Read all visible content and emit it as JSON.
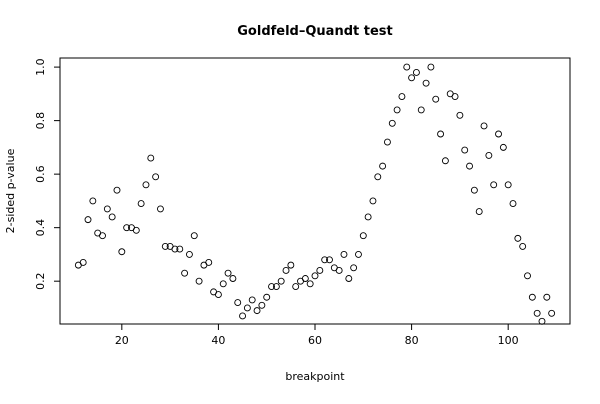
{
  "chart_data": {
    "type": "scatter",
    "title": "Goldfeld–Quandt test",
    "x_label": "breakpoint",
    "y_label": "2-sided p-value",
    "x": [
      11,
      12,
      13,
      14,
      15,
      16,
      17,
      18,
      19,
      20,
      21,
      22,
      23,
      24,
      25,
      26,
      27,
      28,
      29,
      30,
      31,
      32,
      33,
      34,
      35,
      36,
      37,
      38,
      39,
      40,
      41,
      42,
      43,
      44,
      45,
      46,
      47,
      48,
      49,
      50,
      51,
      52,
      53,
      54,
      55,
      56,
      57,
      58,
      59,
      60,
      61,
      62,
      63,
      64,
      65,
      66,
      67,
      68,
      69,
      70,
      71,
      72,
      73,
      74,
      75,
      76,
      77,
      78,
      79,
      80,
      81,
      82,
      83,
      84,
      85,
      86,
      87,
      88,
      89,
      90,
      91,
      92,
      93,
      94,
      95,
      96,
      97,
      98,
      99,
      100,
      101,
      102,
      103,
      104,
      105,
      106,
      107,
      108,
      109
    ],
    "values": [
      0.26,
      0.27,
      0.43,
      0.5,
      0.38,
      0.37,
      0.47,
      0.44,
      0.54,
      0.31,
      0.4,
      0.4,
      0.39,
      0.49,
      0.56,
      0.66,
      0.59,
      0.47,
      0.33,
      0.33,
      0.32,
      0.32,
      0.23,
      0.3,
      0.37,
      0.2,
      0.26,
      0.27,
      0.16,
      0.15,
      0.19,
      0.23,
      0.21,
      0.12,
      0.07,
      0.1,
      0.13,
      0.09,
      0.11,
      0.14,
      0.18,
      0.18,
      0.2,
      0.24,
      0.26,
      0.18,
      0.2,
      0.21,
      0.19,
      0.22,
      0.24,
      0.28,
      0.28,
      0.25,
      0.24,
      0.3,
      0.21,
      0.25,
      0.3,
      0.37,
      0.44,
      0.5,
      0.59,
      0.63,
      0.72,
      0.79,
      0.84,
      0.89,
      1.0,
      0.96,
      0.98,
      0.84,
      0.94,
      1.0,
      0.88,
      0.75,
      0.65,
      0.9,
      0.89,
      0.82,
      0.69,
      0.63,
      0.54,
      0.46,
      0.78,
      0.67,
      0.56,
      0.75,
      0.7,
      0.56,
      0.49,
      0.36,
      0.33,
      0.22,
      0.14,
      0.08,
      0.05,
      0.14,
      0.08
    ],
    "color": "#000000",
    "xlim": [
      7.2,
      112.8
    ],
    "ylim": [
      0.04,
      1.034
    ],
    "xticks": [
      20,
      40,
      60,
      80,
      100
    ],
    "yticks": [
      0.2,
      0.4,
      0.6,
      0.8,
      {
        "value": 1,
        "label": "1.0"
      }
    ]
  }
}
